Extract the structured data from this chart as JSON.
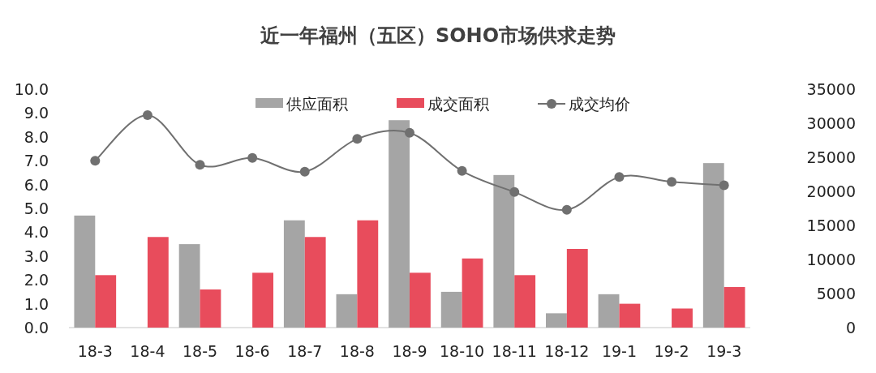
{
  "chart_data": {
    "type": "bar",
    "title": "近一年福州（五区）SOHO市场供求走势",
    "categories": [
      "18-3",
      "18-4",
      "18-5",
      "18-6",
      "18-7",
      "18-8",
      "18-9",
      "18-10",
      "18-11",
      "18-12",
      "19-1",
      "19-2",
      "19-3"
    ],
    "series": [
      {
        "name": "供应面积",
        "color": "#a5a5a5",
        "values": [
          4.7,
          0,
          3.5,
          0,
          4.5,
          1.4,
          8.7,
          1.5,
          6.4,
          0.6,
          1.4,
          0,
          6.9
        ]
      },
      {
        "name": "成交面积",
        "color": "#e84c5c",
        "values": [
          2.2,
          3.8,
          1.6,
          2.3,
          3.8,
          4.5,
          2.3,
          2.9,
          2.2,
          3.3,
          1.0,
          0.8,
          1.7
        ]
      },
      {
        "name": "成交均价",
        "type": "line",
        "axis": "y2",
        "color": "#707070",
        "values": [
          24500,
          31200,
          23900,
          24900,
          22900,
          27700,
          28600,
          23000,
          19900,
          17300,
          22100,
          21400,
          20900
        ]
      }
    ],
    "ylim": [
      0,
      10
    ],
    "yticks": [
      {
        "value": 0,
        "label": "0.0"
      },
      {
        "value": 1,
        "label": "1.0"
      },
      {
        "value": 2,
        "label": "2.0"
      },
      {
        "value": 3,
        "label": "3.0"
      },
      {
        "value": 4,
        "label": "4.0"
      },
      {
        "value": 5,
        "label": "5.0"
      },
      {
        "value": 6,
        "label": "6.0"
      },
      {
        "value": 7,
        "label": "7.0"
      },
      {
        "value": 8,
        "label": "8.0"
      },
      {
        "value": 9,
        "label": "9.0"
      },
      {
        "value": 10,
        "label": "10.0"
      }
    ],
    "y2lim": [
      0,
      35000
    ],
    "y2ticks": [
      0,
      5000,
      10000,
      15000,
      20000,
      25000,
      30000,
      35000
    ],
    "legend": "top",
    "marker": "circle"
  }
}
